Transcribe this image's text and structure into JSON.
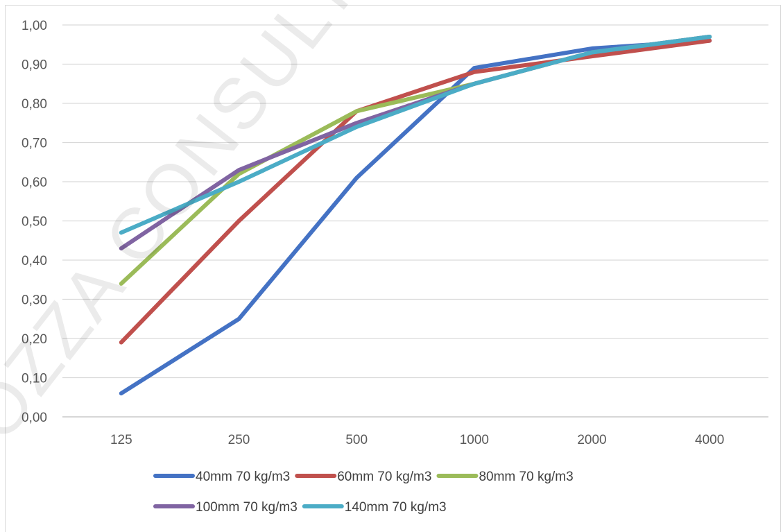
{
  "watermark": "BOZZA CONSULTAZIONE",
  "chart_data": {
    "type": "line",
    "title": "",
    "xlabel": "",
    "ylabel": "",
    "categories": [
      "125",
      "250",
      "500",
      "1000",
      "2000",
      "4000"
    ],
    "ylim": [
      0,
      1
    ],
    "y_ticks": [
      "0,00",
      "0,10",
      "0,20",
      "0,30",
      "0,40",
      "0,50",
      "0,60",
      "0,70",
      "0,80",
      "0,90",
      "1,00"
    ],
    "grid": true,
    "legend": "bottom",
    "series": [
      {
        "name": "40mm 70 kg/m3",
        "color": "#4472C4",
        "values": [
          0.06,
          0.25,
          0.61,
          0.89,
          0.94,
          0.96
        ]
      },
      {
        "name": "60mm 70 kg/m3",
        "color": "#C0504D",
        "values": [
          0.19,
          0.5,
          0.78,
          0.88,
          0.92,
          0.96
        ]
      },
      {
        "name": "80mm 70 kg/m3",
        "color": "#9BBB59",
        "values": [
          0.34,
          0.62,
          0.78,
          0.85,
          0.93,
          0.97
        ]
      },
      {
        "name": "100mm 70 kg/m3",
        "color": "#8064A2",
        "values": [
          0.43,
          0.63,
          0.75,
          0.85,
          0.93,
          0.97
        ]
      },
      {
        "name": "140mm 70 kg/m3",
        "color": "#4BACC6",
        "values": [
          0.47,
          0.6,
          0.74,
          0.85,
          0.93,
          0.97
        ]
      }
    ]
  }
}
